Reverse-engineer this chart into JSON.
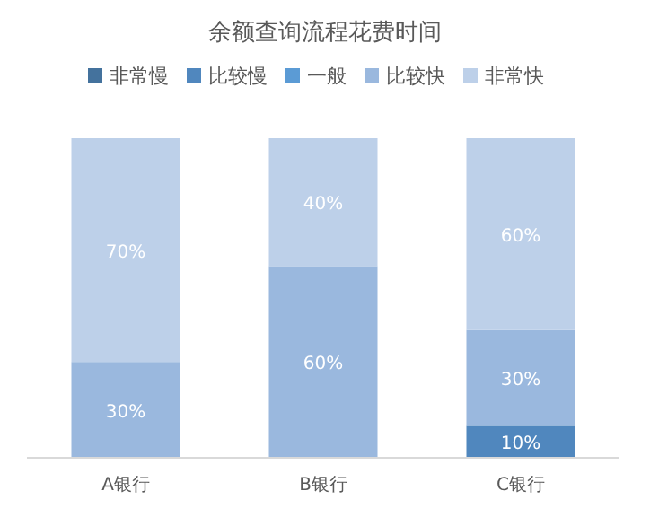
{
  "chart_data": {
    "type": "bar",
    "stacked": true,
    "title": "余额查询流程花费时间",
    "categories": [
      "A银行",
      "B银行",
      "C银行"
    ],
    "ylim": [
      0,
      100
    ],
    "legend": "top",
    "series": [
      {
        "name": "非常慢",
        "color": "#44729d",
        "values": [
          null,
          null,
          null
        ],
        "value_labels": [
          null,
          null,
          null
        ]
      },
      {
        "name": "比较慢",
        "color": "#5087be",
        "values": [
          null,
          null,
          10
        ],
        "value_labels": [
          null,
          null,
          "10%"
        ]
      },
      {
        "name": "一般",
        "color": "#5b9bd5",
        "values": [
          null,
          null,
          null
        ],
        "value_labels": [
          null,
          null,
          null
        ]
      },
      {
        "name": "比较快",
        "color": "#9ab8de",
        "values": [
          30,
          60,
          30
        ],
        "value_labels": [
          "30%",
          "60%",
          "30%"
        ]
      },
      {
        "name": "非常快",
        "color": "#bdd0e9",
        "values": [
          70,
          40,
          60
        ],
        "value_labels": [
          "70%",
          "40%",
          "60%"
        ]
      }
    ]
  }
}
